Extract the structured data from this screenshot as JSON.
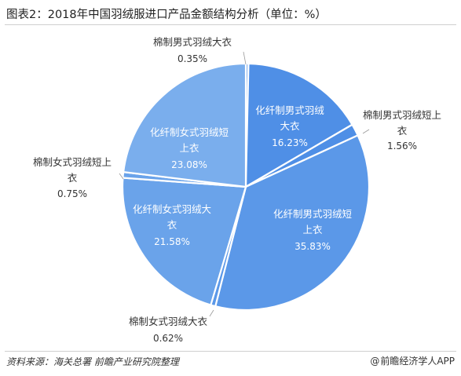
{
  "title": "图表2：2018年中国羽绒服进口产品金额结构分析（单位：%）",
  "source": "资料来源：海关总署 前瞻产业研究院整理",
  "brand": {
    "at": "@",
    "name": "前瞻经济学人APP"
  },
  "chart_data": {
    "type": "pie",
    "unit": "%",
    "slices": [
      {
        "label": "棉制男式羽绒大衣",
        "value": 0.35,
        "value_text": "0.35%",
        "color": "#6fa3e8"
      },
      {
        "label": "化纤制男式羽绒大衣",
        "value": 16.23,
        "value_text": "16.23%",
        "color": "#4f8fe6"
      },
      {
        "label": "棉制男式羽绒短上衣",
        "value": 1.56,
        "value_text": "1.56%",
        "color": "#4f8fe6"
      },
      {
        "label": "化纤制男式羽绒短上衣",
        "value": 35.83,
        "value_text": "35.83%",
        "color": "#5b98e8"
      },
      {
        "label": "棉制女式羽绒大衣",
        "value": 0.62,
        "value_text": "0.62%",
        "color": "#5b98e8"
      },
      {
        "label": "化纤制女式羽绒大衣",
        "value": 21.58,
        "value_text": "21.58%",
        "color": "#6aa3ea"
      },
      {
        "label": "棉制女式羽绒短上衣",
        "value": 0.75,
        "value_text": "0.75%",
        "color": "#6aa3ea"
      },
      {
        "label": "化纤制女式羽绒短上衣",
        "value": 23.08,
        "value_text": "23.08%",
        "color": "#7aaeed"
      }
    ]
  }
}
